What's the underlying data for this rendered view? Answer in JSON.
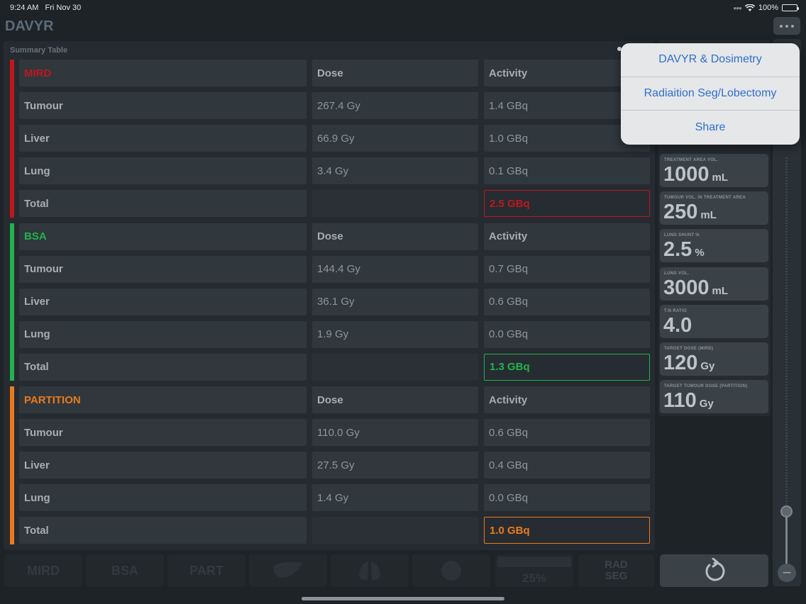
{
  "status": {
    "time": "9:24 AM",
    "date": "Fri Nov 30",
    "battery": "100%"
  },
  "app": {
    "title": "DAVYR"
  },
  "summary": {
    "label": "Summary Table",
    "sections": [
      {
        "name": "MIRD",
        "color": "#c0171d",
        "dose_header": "Dose",
        "activity_header": "Activity",
        "rows": [
          {
            "label": "Tumour",
            "dose": "267.4 Gy",
            "activity": "1.4 GBq"
          },
          {
            "label": "Liver",
            "dose": "66.9 Gy",
            "activity": "1.0 GBq"
          },
          {
            "label": "Lung",
            "dose": "3.4 Gy",
            "activity": "0.1 GBq"
          }
        ],
        "total_label": "Total",
        "total_activity": "2.5 GBq"
      },
      {
        "name": "BSA",
        "color": "#21b34c",
        "dose_header": "Dose",
        "activity_header": "Activity",
        "rows": [
          {
            "label": "Tumour",
            "dose": "144.4 Gy",
            "activity": "0.7 GBq"
          },
          {
            "label": "Liver",
            "dose": "36.1 Gy",
            "activity": "0.6 GBq"
          },
          {
            "label": "Lung",
            "dose": "1.9 Gy",
            "activity": "0.0 GBq"
          }
        ],
        "total_label": "Total",
        "total_activity": "1.3 GBq"
      },
      {
        "name": "PARTITION",
        "color": "#ea7a1c",
        "dose_header": "Dose",
        "activity_header": "Activity",
        "rows": [
          {
            "label": "Tumour",
            "dose": "110.0 Gy",
            "activity": "0.6 GBq"
          },
          {
            "label": "Liver",
            "dose": "27.5 Gy",
            "activity": "0.4 GBq"
          },
          {
            "label": "Lung",
            "dose": "1.4 Gy",
            "activity": "0.0 GBq"
          }
        ],
        "total_label": "Total",
        "total_activity": "1.0 GBq"
      }
    ]
  },
  "params": [
    {
      "label": "TREATMENT AREA VOL.",
      "value": "1000",
      "unit": "mL"
    },
    {
      "label": "TUMOUR VOL. IN TREATMENT AREA",
      "value": "250",
      "unit": "mL"
    },
    {
      "label": "LUNG SHUNT %",
      "value": "2.5",
      "unit": "%"
    },
    {
      "label": "LUNG VOL.",
      "value": "3000",
      "unit": "mL"
    },
    {
      "label": "T:N RATIO",
      "value": "4.0",
      "unit": ""
    },
    {
      "label": "TARGET DOSE (MIRD)",
      "value": "120",
      "unit": "Gy"
    },
    {
      "label": "TARGET TUMOUR DOSE (PARTITION)",
      "value": "110",
      "unit": "Gy"
    }
  ],
  "slider": {
    "value_fraction": 0.16
  },
  "bottom_bar": {
    "mird_label": "MIRD",
    "bsa_label": "BSA",
    "part_label": "PART",
    "rad_seg_line1": "RAD",
    "rad_seg_line2": "SEG",
    "percent_value": "25%"
  },
  "menu": {
    "items": [
      "DAVYR & Dosimetry",
      "Radiaition Seg/Lobectomy",
      "Share"
    ]
  },
  "icons": {
    "more": "more-dots-icon",
    "reset": "reset-arrow-icon",
    "wifi": "wifi-icon",
    "battery": "battery-icon"
  }
}
